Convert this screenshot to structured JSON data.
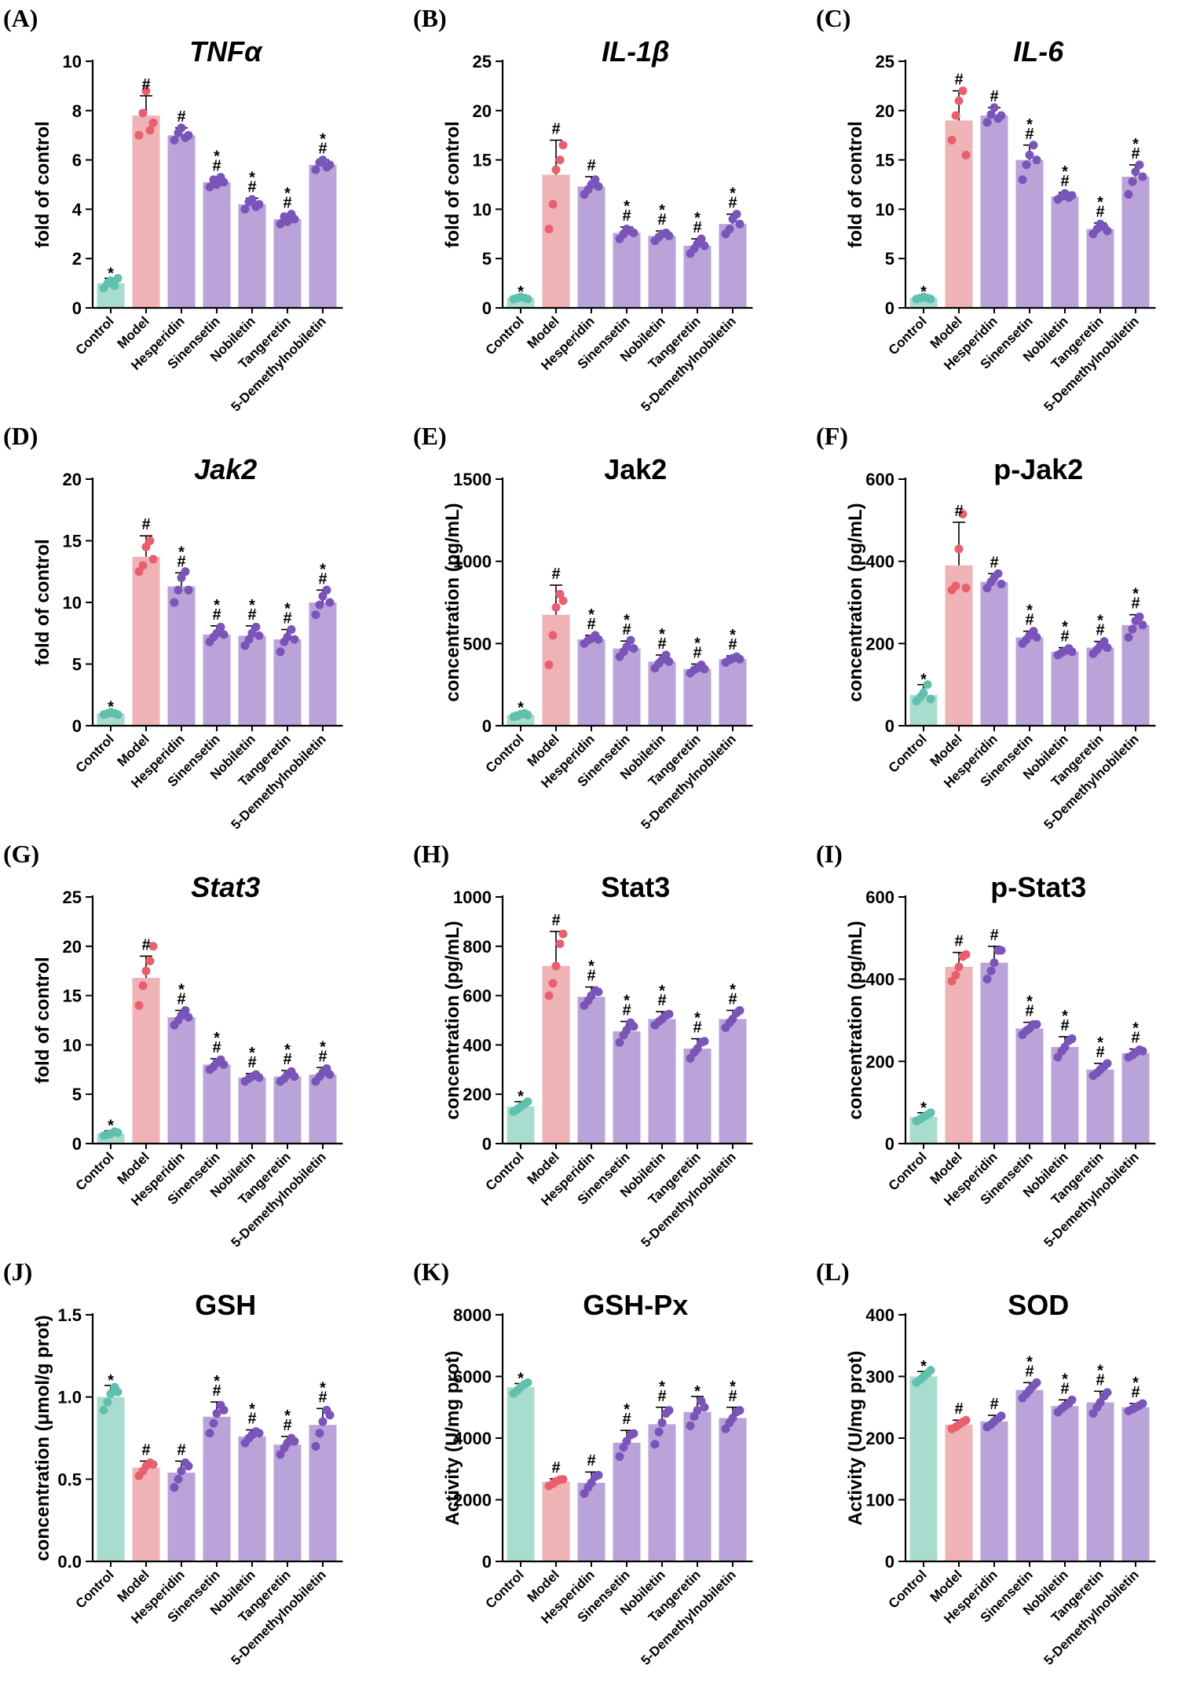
{
  "colors": {
    "Control": "#a8dccf",
    "Model": "#efb3b6",
    "Treatment": "#b9a3d8",
    "dot_Control": "#5fc0ad",
    "dot_Model": "#e8606e",
    "dot_Treatment": "#7a54b8"
  },
  "chart_data": [
    {
      "letter": "(A)",
      "title": "TNFα",
      "italic": true,
      "type": "bar",
      "ylabel": "fold of control",
      "ylim": [
        0,
        10
      ],
      "yticks": [
        0,
        2,
        4,
        6,
        8,
        10
      ],
      "categories": [
        "Control",
        "Model",
        "Hesperidin",
        "Sinensetin",
        "Nobiletin",
        "Tangeretin",
        "5-Demethylnobiletin"
      ],
      "values": [
        1.0,
        7.8,
        7.0,
        5.1,
        4.2,
        3.6,
        5.8
      ],
      "errors": [
        0.2,
        0.8,
        0.3,
        0.2,
        0.25,
        0.2,
        0.2
      ],
      "sig": [
        "*",
        "#",
        "#",
        "* #",
        "* #",
        "* #",
        "* #"
      ],
      "points": [
        [
          0.8,
          1.0,
          1.1,
          0.9,
          1.2
        ],
        [
          7.0,
          7.9,
          8.8,
          7.2,
          7.5
        ],
        [
          6.8,
          7.1,
          7.3,
          6.9,
          7.0
        ],
        [
          4.9,
          5.2,
          5.0,
          5.3,
          5.1
        ],
        [
          4.0,
          4.3,
          4.4,
          4.1,
          4.2
        ],
        [
          3.4,
          3.7,
          3.5,
          3.8,
          3.6
        ],
        [
          5.6,
          5.9,
          6.0,
          5.7,
          5.8
        ]
      ]
    },
    {
      "letter": "(B)",
      "title": "IL-1β",
      "italic": true,
      "type": "bar",
      "ylabel": "fold of control",
      "ylim": [
        0,
        25
      ],
      "yticks": [
        0,
        5,
        10,
        15,
        20,
        25
      ],
      "categories": [
        "Control",
        "Model",
        "Hesperidin",
        "Sinensetin",
        "Nobiletin",
        "Tangeretin",
        "5-Demethylnobiletin"
      ],
      "values": [
        1.0,
        13.5,
        12.3,
        7.6,
        7.3,
        6.3,
        8.5
      ],
      "errors": [
        0.1,
        3.5,
        1.0,
        0.6,
        0.5,
        0.7,
        1.0
      ],
      "sig": [
        "*",
        "#",
        "#",
        "* #",
        "* #",
        "* #",
        "* #"
      ],
      "points": [
        [
          0.9,
          1.0,
          1.1,
          1.0,
          0.9
        ],
        [
          8.0,
          10.5,
          14.0,
          15.0,
          16.5
        ],
        [
          11.5,
          12.0,
          12.5,
          13.0,
          12.3
        ],
        [
          7.0,
          7.5,
          8.0,
          7.8,
          7.6
        ],
        [
          6.8,
          7.2,
          7.5,
          7.6,
          7.3
        ],
        [
          5.5,
          6.0,
          6.5,
          7.0,
          6.3
        ],
        [
          7.5,
          8.0,
          9.0,
          9.5,
          8.5
        ]
      ]
    },
    {
      "letter": "(C)",
      "title": "IL-6",
      "italic": true,
      "type": "bar",
      "ylabel": "fold of control",
      "ylim": [
        0,
        25
      ],
      "yticks": [
        0,
        5,
        10,
        15,
        20,
        25
      ],
      "categories": [
        "Control",
        "Model",
        "Hesperidin",
        "Sinensetin",
        "Nobiletin",
        "Tangeretin",
        "5-Demethylnobiletin"
      ],
      "values": [
        1.0,
        19.0,
        19.5,
        15.0,
        11.3,
        8.0,
        13.3
      ],
      "errors": [
        0.1,
        3.0,
        0.8,
        1.5,
        0.4,
        0.6,
        1.2
      ],
      "sig": [
        "*",
        "#",
        "#",
        "* #",
        "* #",
        "* #",
        "* #"
      ],
      "points": [
        [
          0.9,
          1.0,
          1.1,
          1.0,
          0.9
        ],
        [
          17.0,
          19.5,
          21.0,
          22.0,
          15.5
        ],
        [
          18.8,
          19.6,
          20.3,
          19.2,
          19.5
        ],
        [
          13.0,
          14.5,
          15.5,
          16.5,
          15.0
        ],
        [
          11.0,
          11.3,
          11.6,
          11.2,
          11.4
        ],
        [
          7.5,
          8.0,
          8.5,
          8.2,
          7.8
        ],
        [
          11.5,
          12.8,
          13.8,
          14.5,
          13.3
        ]
      ]
    },
    {
      "letter": "(D)",
      "title": "Jak2",
      "italic": true,
      "type": "bar",
      "ylabel": "fold of control",
      "ylim": [
        0,
        20
      ],
      "yticks": [
        0,
        5,
        10,
        15,
        20
      ],
      "categories": [
        "Control",
        "Model",
        "Hesperidin",
        "Sinensetin",
        "Nobiletin",
        "Tangeretin",
        "5-Demethylnobiletin"
      ],
      "values": [
        1.0,
        13.7,
        11.3,
        7.4,
        7.3,
        7.0,
        10.0
      ],
      "errors": [
        0.1,
        1.7,
        1.1,
        0.7,
        0.8,
        0.8,
        1.0
      ],
      "sig": [
        "*",
        "#",
        "* #",
        "* #",
        "* #",
        "* #",
        "* #"
      ],
      "points": [
        [
          0.9,
          1.0,
          1.1,
          1.0,
          0.9
        ],
        [
          12.5,
          13.0,
          14.5,
          15.0,
          13.5
        ],
        [
          10.0,
          11.0,
          12.0,
          12.5,
          11.0
        ],
        [
          6.8,
          7.2,
          7.5,
          8.0,
          7.4
        ],
        [
          6.5,
          7.0,
          7.5,
          8.0,
          7.3
        ],
        [
          6.0,
          6.8,
          7.2,
          7.8,
          7.0
        ],
        [
          9.0,
          9.8,
          10.5,
          11.0,
          10.0
        ]
      ]
    },
    {
      "letter": "(E)",
      "title": "Jak2",
      "italic": false,
      "type": "bar",
      "ylabel": "concentration (pg/mL)",
      "ylim": [
        0,
        1500
      ],
      "yticks": [
        0,
        500,
        1000,
        1500
      ],
      "categories": [
        "Control",
        "Model",
        "Hesperidin",
        "Sinensetin",
        "Nobiletin",
        "Tangeretin",
        "5-Demethylnobiletin"
      ],
      "values": [
        65,
        675,
        525,
        470,
        390,
        345,
        405
      ],
      "errors": [
        15,
        180,
        25,
        45,
        40,
        30,
        20
      ],
      "sig": [
        "*",
        "#",
        "* #",
        "* #",
        "* #",
        "* #",
        "* #"
      ],
      "points": [
        [
          55,
          60,
          70,
          75,
          65
        ],
        [
          370,
          550,
          720,
          800,
          760
        ],
        [
          500,
          520,
          530,
          550,
          525
        ],
        [
          420,
          450,
          480,
          520,
          470
        ],
        [
          350,
          380,
          400,
          430,
          390
        ],
        [
          320,
          340,
          350,
          370,
          345
        ],
        [
          385,
          400,
          410,
          420,
          405
        ]
      ]
    },
    {
      "letter": "(F)",
      "title": "p-Jak2",
      "italic": false,
      "type": "bar",
      "ylabel": "concentration (pg/mL)",
      "ylim": [
        0,
        600
      ],
      "yticks": [
        0,
        200,
        400,
        600
      ],
      "categories": [
        "Control",
        "Model",
        "Hesperidin",
        "Sinensetin",
        "Nobiletin",
        "Tangeretin",
        "5-Demethylnobiletin"
      ],
      "values": [
        75,
        390,
        350,
        215,
        180,
        190,
        245
      ],
      "errors": [
        25,
        105,
        20,
        15,
        10,
        15,
        25
      ],
      "sig": [
        "*",
        "#",
        "#",
        "* #",
        "* #",
        "* #",
        "* #"
      ],
      "points": [
        [
          60,
          70,
          80,
          100,
          65
        ],
        [
          330,
          340,
          430,
          515,
          335
        ],
        [
          335,
          350,
          360,
          370,
          345
        ],
        [
          200,
          210,
          220,
          230,
          215
        ],
        [
          172,
          178,
          182,
          188,
          180
        ],
        [
          175,
          185,
          195,
          205,
          190
        ],
        [
          215,
          235,
          255,
          265,
          245
        ]
      ]
    },
    {
      "letter": "(G)",
      "title": "Stat3",
      "italic": true,
      "type": "bar",
      "ylabel": "fold of control",
      "ylim": [
        0,
        25
      ],
      "yticks": [
        0,
        5,
        10,
        15,
        20,
        25
      ],
      "categories": [
        "Control",
        "Model",
        "Hesperidin",
        "Sinensetin",
        "Nobiletin",
        "Tangeretin",
        "5-Demethylnobiletin"
      ],
      "values": [
        1.0,
        16.8,
        12.8,
        8.0,
        6.7,
        6.8,
        7.0
      ],
      "errors": [
        0.3,
        2.2,
        0.7,
        0.6,
        0.4,
        0.6,
        0.7
      ],
      "sig": [
        "*",
        "#",
        "* #",
        "* #",
        "* #",
        "* #",
        "* #"
      ],
      "points": [
        [
          0.8,
          0.9,
          1.0,
          1.2,
          1.1
        ],
        [
          14.0,
          16.0,
          17.5,
          18.5,
          20.0
        ],
        [
          12.0,
          12.5,
          13.0,
          13.5,
          12.8
        ],
        [
          7.5,
          7.8,
          8.2,
          8.5,
          8.0
        ],
        [
          6.3,
          6.6,
          6.8,
          7.0,
          6.7
        ],
        [
          6.3,
          6.6,
          7.0,
          7.3,
          6.8
        ],
        [
          6.3,
          6.8,
          7.2,
          7.6,
          7.0
        ]
      ]
    },
    {
      "letter": "(H)",
      "title": "Stat3",
      "italic": false,
      "type": "bar",
      "ylabel": "concentration (pg/mL)",
      "ylim": [
        0,
        1000
      ],
      "yticks": [
        0,
        200,
        400,
        600,
        800,
        1000
      ],
      "categories": [
        "Control",
        "Model",
        "Hesperidin",
        "Sinensetin",
        "Nobiletin",
        "Tangeretin",
        "5-Demethylnobiletin"
      ],
      "values": [
        150,
        720,
        595,
        455,
        505,
        385,
        505
      ],
      "errors": [
        20,
        140,
        40,
        40,
        30,
        40,
        35
      ],
      "sig": [
        "*",
        "#",
        "* #",
        "* #",
        "* #",
        "* #",
        "* #"
      ],
      "points": [
        [
          130,
          140,
          150,
          160,
          170
        ],
        [
          600,
          650,
          720,
          810,
          850
        ],
        [
          560,
          580,
          600,
          620,
          615
        ],
        [
          410,
          440,
          460,
          490,
          475
        ],
        [
          480,
          495,
          505,
          520,
          525
        ],
        [
          345,
          370,
          385,
          410,
          415
        ],
        [
          470,
          490,
          505,
          530,
          540
        ]
      ]
    },
    {
      "letter": "(I)",
      "title": "p-Stat3",
      "italic": false,
      "type": "bar",
      "ylabel": "concentration (pg/mL)",
      "ylim": [
        0,
        600
      ],
      "yticks": [
        0,
        200,
        400,
        600
      ],
      "categories": [
        "Control",
        "Model",
        "Hesperidin",
        "Sinensetin",
        "Nobiletin",
        "Tangeretin",
        "5-Demethylnobiletin"
      ],
      "values": [
        65,
        430,
        440,
        280,
        235,
        180,
        220
      ],
      "errors": [
        10,
        35,
        40,
        15,
        25,
        15,
        10
      ],
      "sig": [
        "*",
        "#",
        "#",
        "* #",
        "* #",
        "* #",
        "* #"
      ],
      "points": [
        [
          55,
          60,
          65,
          70,
          75
        ],
        [
          395,
          410,
          430,
          455,
          460
        ],
        [
          400,
          420,
          440,
          470,
          470
        ],
        [
          265,
          275,
          280,
          290,
          290
        ],
        [
          210,
          225,
          235,
          250,
          255
        ],
        [
          165,
          172,
          180,
          188,
          195
        ],
        [
          210,
          215,
          222,
          228,
          225
        ]
      ]
    },
    {
      "letter": "(J)",
      "title": "GSH",
      "italic": false,
      "type": "bar",
      "ylabel": "concentration (μmol/g prot)",
      "ylim": [
        0,
        1.5
      ],
      "yticks": [
        "0.0",
        "0.5",
        "1.0",
        "1.5"
      ],
      "categories": [
        "Control",
        "Model",
        "Hesperidin",
        "Sinensetin",
        "Nobiletin",
        "Tangeretin",
        "5-Demethylnobiletin"
      ],
      "values": [
        1.0,
        0.57,
        0.54,
        0.88,
        0.76,
        0.71,
        0.83
      ],
      "errors": [
        0.07,
        0.04,
        0.07,
        0.09,
        0.04,
        0.05,
        0.1
      ],
      "sig": [
        "*",
        "#",
        "#",
        "* #",
        "* #",
        "* #",
        "* #"
      ],
      "points": [
        [
          0.92,
          0.97,
          1.02,
          1.06,
          1.03
        ],
        [
          0.52,
          0.55,
          0.58,
          0.6,
          0.59
        ],
        [
          0.45,
          0.5,
          0.55,
          0.6,
          0.58
        ],
        [
          0.78,
          0.84,
          0.9,
          0.95,
          0.92
        ],
        [
          0.72,
          0.75,
          0.77,
          0.79,
          0.78
        ],
        [
          0.65,
          0.69,
          0.72,
          0.75,
          0.73
        ],
        [
          0.7,
          0.78,
          0.85,
          0.92,
          0.89
        ]
      ]
    },
    {
      "letter": "(K)",
      "title": "GSH-Px",
      "italic": false,
      "type": "bar",
      "ylabel": "Activity (U/mg prot)",
      "ylim": [
        0,
        8000
      ],
      "yticks": [
        0,
        2000,
        4000,
        6000,
        8000
      ],
      "categories": [
        "Control",
        "Model",
        "Hesperidin",
        "Sinensetin",
        "Nobiletin",
        "Tangeretin",
        "5-Demethylnobiletin"
      ],
      "values": [
        5650,
        2580,
        2550,
        3850,
        4450,
        4850,
        4650
      ],
      "errors": [
        120,
        100,
        350,
        400,
        550,
        500,
        350
      ],
      "sig": [
        "*",
        "#",
        "#",
        "* #",
        "* #",
        "*",
        "* #"
      ],
      "points": [
        [
          5450,
          5550,
          5650,
          5750,
          5800
        ],
        [
          2450,
          2520,
          2600,
          2650,
          2660
        ],
        [
          2200,
          2400,
          2550,
          2750,
          2800
        ],
        [
          3400,
          3700,
          3900,
          4100,
          4150
        ],
        [
          3800,
          4200,
          4500,
          4800,
          4900
        ],
        [
          4400,
          4700,
          4900,
          5200,
          5000
        ],
        [
          4300,
          4500,
          4650,
          4850,
          4900
        ]
      ]
    },
    {
      "letter": "(L)",
      "title": "SOD",
      "italic": false,
      "type": "bar",
      "ylabel": "Activity (U/mg prot)",
      "ylim": [
        0,
        400
      ],
      "yticks": [
        0,
        100,
        200,
        300,
        400
      ],
      "categories": [
        "Control",
        "Model",
        "Hesperidin",
        "Sinensetin",
        "Nobiletin",
        "Tangeretin",
        "5-Demethylnobiletin"
      ],
      "values": [
        300,
        222,
        227,
        278,
        252,
        258,
        250
      ],
      "errors": [
        8,
        7,
        10,
        12,
        10,
        18,
        6
      ],
      "sig": [
        "*",
        "#",
        "#",
        "* #",
        "* #",
        "* #",
        "* #"
      ],
      "points": [
        [
          290,
          295,
          300,
          305,
          310
        ],
        [
          215,
          218,
          222,
          226,
          229
        ],
        [
          218,
          222,
          227,
          232,
          236
        ],
        [
          265,
          272,
          278,
          285,
          290
        ],
        [
          242,
          248,
          252,
          256,
          262
        ],
        [
          240,
          250,
          258,
          268,
          274
        ],
        [
          244,
          247,
          250,
          253,
          256
        ]
      ]
    }
  ]
}
